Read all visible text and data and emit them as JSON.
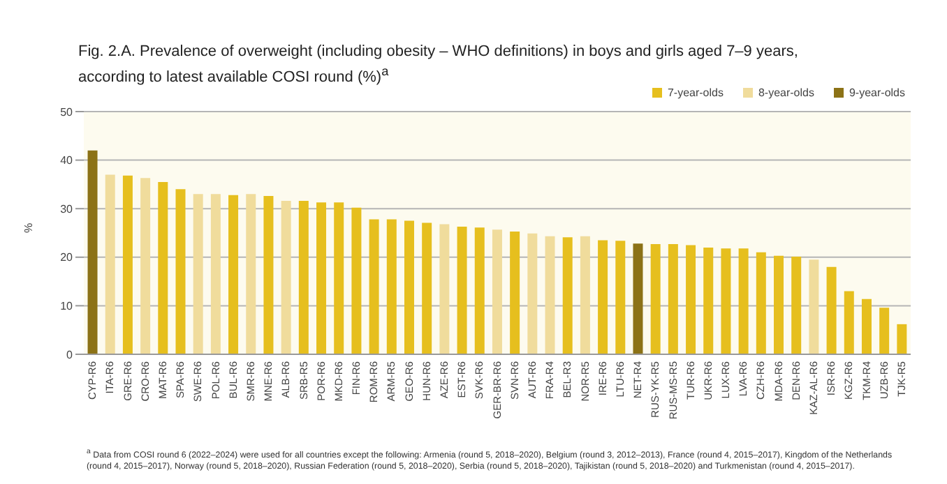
{
  "chart_data": {
    "type": "bar",
    "title": "Fig. 2.A. Prevalence of overweight (including obesity – WHO definitions) in boys and girls aged 7–9 years, according to latest available COSI round (%)$^{a}$",
    "ylabel": "%",
    "categories": [
      "CYP-R6",
      "ITA-R6",
      "GRE-R6",
      "CRO-R6",
      "MAT-R6",
      "SPA-R6",
      "SWE-R6",
      "POL-R6",
      "BUL-R6",
      "SMR-R6",
      "MNE-R6",
      "ALB-R6",
      "SRB-R5",
      "POR-R6",
      "MKD-R6",
      "FIN-R6",
      "ROM-R6",
      "ARM-R5",
      "GEO-R6",
      "HUN-R6",
      "AZE-R6",
      "EST-R6",
      "SVK-R6",
      "GER-BR-R6",
      "SVN-R6",
      "AUT-R6",
      "FRA-R4",
      "BEL-R3",
      "NOR-R5",
      "IRE-R6",
      "LTU-R6",
      "NET-R4",
      "RUS-YK-R5",
      "RUS-MS-R5",
      "TUR-R6",
      "UKR-R6",
      "LUX-R6",
      "LVA-R6",
      "CZH-R6",
      "MDA-R6",
      "DEN-R6",
      "KAZ-AL-R6",
      "ISR-R6",
      "KGZ-R6",
      "TKM-R4",
      "UZB-R6",
      "TJK-R5"
    ],
    "series": [
      {
        "name": "7-year-olds",
        "color": "#e6bf1e",
        "values": [
          null,
          null,
          36.8,
          null,
          35.5,
          34,
          null,
          null,
          32.8,
          null,
          32.6,
          null,
          31.6,
          31.3,
          31.3,
          30.2,
          27.8,
          27.8,
          27.5,
          27.1,
          null,
          26.3,
          26.1,
          null,
          25.3,
          null,
          null,
          24.1,
          null,
          23.5,
          23.4,
          null,
          22.7,
          22.7,
          22.5,
          22,
          21.8,
          21.8,
          21,
          20.3,
          20.1,
          null,
          18,
          13,
          11.4,
          9.6,
          6.2
        ]
      },
      {
        "name": "8-year-olds",
        "color": "#f0dc9c",
        "values": [
          null,
          37,
          null,
          36.3,
          null,
          null,
          33,
          33,
          null,
          33,
          null,
          31.6,
          null,
          null,
          null,
          null,
          null,
          null,
          null,
          null,
          26.8,
          null,
          null,
          25.7,
          null,
          24.9,
          24.3,
          null,
          24.3,
          null,
          null,
          null,
          null,
          null,
          null,
          null,
          null,
          null,
          null,
          null,
          null,
          19.5,
          null,
          null,
          null,
          null,
          null
        ]
      },
      {
        "name": "9-year-olds",
        "color": "#8c7216",
        "values": [
          42,
          null,
          null,
          null,
          null,
          null,
          null,
          null,
          null,
          null,
          null,
          null,
          null,
          null,
          null,
          null,
          null,
          null,
          null,
          null,
          null,
          null,
          null,
          null,
          null,
          null,
          null,
          null,
          null,
          null,
          null,
          22.8,
          null,
          null,
          null,
          null,
          null,
          null,
          null,
          null,
          null,
          null,
          null,
          null,
          null,
          null,
          null
        ]
      }
    ],
    "stacked": true,
    "ylim": [
      0,
      50
    ],
    "yticks": [
      0,
      10,
      20,
      30,
      40,
      50
    ],
    "grid": "y",
    "legend": "top right",
    "annotations": [
      "$^{a}$ Data from COSI round 6 (2022–2024) were used for all countries except the following: Armenia (round 5, 2018–2020), Belgium (round 3, 2012–2013), France (round 4, 2015–2017), Kingdom of the Netherlands (round 4, 2015–2017), Norway (round 5, 2018–2020), Russian Federation (round 5, 2018–2020), Serbia (round 5, 2018–2020), Tajikistan (round 5, 2018–2020) and Turkmenistan (round 4, 2015–2017)."
    ]
  }
}
